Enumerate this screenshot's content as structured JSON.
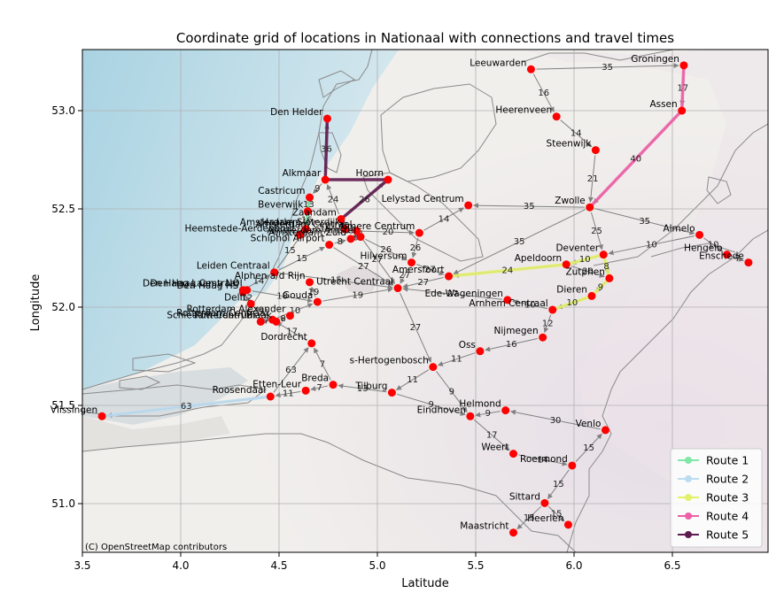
{
  "chart_data": {
    "type": "scatter",
    "title": "Coordinate grid of locations in Nationaal with connections and travel times",
    "xlabel": "Latitude",
    "ylabel": "Longitude",
    "xlim": [
      3.5,
      7.0
    ],
    "ylim": [
      50.75,
      53.3
    ],
    "xticks": [
      "3.5",
      "4.0",
      "4.5",
      "5.0",
      "5.5",
      "6.0",
      "6.5"
    ],
    "yticks": [
      "51.0",
      "51.5",
      "52.0",
      "52.5",
      "53.0"
    ],
    "grid": true,
    "attribution": "(C) OpenStreetMap contributors",
    "legend_position": "bottom-right",
    "colors": {
      "node": "#ff0000",
      "edge": "#808080",
      "route1": "#7fe8a8",
      "route2": "#bcdcf0",
      "route3": "#e2f06a",
      "route4": "#ef5fa7",
      "route5": "#5e1a4f"
    },
    "routes": [
      {
        "name": "Route 1",
        "color": "#7fe8a8"
      },
      {
        "name": "Route 2",
        "color": "#bcdcf0"
      },
      {
        "name": "Route 3",
        "color": "#e2f06a"
      },
      {
        "name": "Route 4",
        "color": "#ef5fa7"
      },
      {
        "name": "Route 5",
        "color": "#5e1a4f"
      }
    ],
    "nodes": [
      {
        "name": "Leeuwarden",
        "x": 5.79,
        "y": 53.2
      },
      {
        "name": "Groningen",
        "x": 6.57,
        "y": 53.22
      },
      {
        "name": "Den Helder",
        "x": 4.75,
        "y": 52.95
      },
      {
        "name": "Heerenveen",
        "x": 5.92,
        "y": 52.96
      },
      {
        "name": "Assen",
        "x": 6.56,
        "y": 52.99
      },
      {
        "name": "Steenwijk",
        "x": 6.12,
        "y": 52.79
      },
      {
        "name": "Alkmaar",
        "x": 4.74,
        "y": 52.64
      },
      {
        "name": "Hoorn",
        "x": 5.06,
        "y": 52.64
      },
      {
        "name": "Castricum",
        "x": 4.66,
        "y": 52.55
      },
      {
        "name": "Beverwijk",
        "x": 4.65,
        "y": 52.48
      },
      {
        "name": "Zaandam",
        "x": 4.82,
        "y": 52.44
      },
      {
        "name": "Amsterdam Centraal",
        "x": 4.9,
        "y": 52.38
      },
      {
        "name": "Amsterdam Sloterdijk",
        "x": 4.84,
        "y": 52.39
      },
      {
        "name": "Haarlem",
        "x": 4.64,
        "y": 52.39
      },
      {
        "name": "Amsterdam Amstel",
        "x": 4.92,
        "y": 52.35
      },
      {
        "name": "Amsterdam Zuid",
        "x": 4.87,
        "y": 52.34
      },
      {
        "name": "Heemstede-Aerdenhout",
        "x": 4.61,
        "y": 52.36
      },
      {
        "name": "Almere Centrum",
        "x": 5.22,
        "y": 52.37
      },
      {
        "name": "Lelystad Centrum",
        "x": 5.47,
        "y": 52.51
      },
      {
        "name": "Zwolle",
        "x": 6.09,
        "y": 52.5
      },
      {
        "name": "Almelo",
        "x": 6.65,
        "y": 52.36
      },
      {
        "name": "Hengelo",
        "x": 6.79,
        "y": 52.26
      },
      {
        "name": "Enschede",
        "x": 6.9,
        "y": 52.22
      },
      {
        "name": "Schiphol Airport",
        "x": 4.76,
        "y": 52.31
      },
      {
        "name": "Leiden Centraal",
        "x": 4.48,
        "y": 52.17
      },
      {
        "name": "Hilversum",
        "x": 5.18,
        "y": 52.22
      },
      {
        "name": "Amersfoort",
        "x": 5.37,
        "y": 52.15
      },
      {
        "name": "Apeldoorn",
        "x": 5.97,
        "y": 52.21
      },
      {
        "name": "Deventer",
        "x": 6.16,
        "y": 52.26
      },
      {
        "name": "Zutphen",
        "x": 6.19,
        "y": 52.14
      },
      {
        "name": "Den Haag Centraal",
        "x": 4.32,
        "y": 52.08
      },
      {
        "name": "Den Haag Laan v NOI",
        "x": 4.34,
        "y": 52.08
      },
      {
        "name": "Den Haag HS",
        "x": 4.32,
        "y": 52.07
      },
      {
        "name": "Delft",
        "x": 4.36,
        "y": 52.01
      },
      {
        "name": "Alphen a/d Rijn",
        "x": 4.66,
        "y": 52.12
      },
      {
        "name": "Gouda",
        "x": 4.7,
        "y": 52.02
      },
      {
        "name": "Utrecht Centraal",
        "x": 5.11,
        "y": 52.09
      },
      {
        "name": "Ede-Wageningen",
        "x": 5.67,
        "y": 52.03
      },
      {
        "name": "Dieren",
        "x": 6.1,
        "y": 52.05
      },
      {
        "name": "Arnhem Centraal",
        "x": 5.9,
        "y": 51.98
      },
      {
        "name": "Rotterdam Centraal",
        "x": 4.47,
        "y": 51.93
      },
      {
        "name": "Rotterdam Blaak",
        "x": 4.49,
        "y": 51.92
      },
      {
        "name": "Rotterdam Alexander",
        "x": 4.56,
        "y": 51.95
      },
      {
        "name": "Schiedam Centrum",
        "x": 4.41,
        "y": 51.92
      },
      {
        "name": "Dordrecht",
        "x": 4.67,
        "y": 51.81
      },
      {
        "name": "Nijmegen",
        "x": 5.85,
        "y": 51.84
      },
      {
        "name": "Oss",
        "x": 5.53,
        "y": 51.77
      },
      {
        "name": "s-Hertogenbosch",
        "x": 5.29,
        "y": 51.69
      },
      {
        "name": "Breda",
        "x": 4.78,
        "y": 51.6
      },
      {
        "name": "Roosendaal",
        "x": 4.46,
        "y": 51.54
      },
      {
        "name": "Etten-Leur",
        "x": 4.64,
        "y": 51.57
      },
      {
        "name": "Tilburg",
        "x": 5.08,
        "y": 51.56
      },
      {
        "name": "Vlissingen",
        "x": 3.6,
        "y": 51.44
      },
      {
        "name": "Eindhoven",
        "x": 5.48,
        "y": 51.44
      },
      {
        "name": "Helmond",
        "x": 5.66,
        "y": 51.47
      },
      {
        "name": "Venlo",
        "x": 6.17,
        "y": 51.37
      },
      {
        "name": "Weert",
        "x": 5.7,
        "y": 51.25
      },
      {
        "name": "Roermond",
        "x": 6.0,
        "y": 51.19
      },
      {
        "name": "Sittard",
        "x": 5.86,
        "y": 51.0
      },
      {
        "name": "Heerlen",
        "x": 5.98,
        "y": 50.89
      },
      {
        "name": "Maastricht",
        "x": 5.7,
        "y": 50.85
      }
    ],
    "edges": [
      {
        "from": "Leeuwarden",
        "to": "Groningen",
        "time": 35
      },
      {
        "from": "Leeuwarden",
        "to": "Heerenveen",
        "time": 16
      },
      {
        "from": "Heerenveen",
        "to": "Steenwijk",
        "time": 14
      },
      {
        "from": "Steenwijk",
        "to": "Zwolle",
        "time": 21
      },
      {
        "from": "Groningen",
        "to": "Assen",
        "time": 17
      },
      {
        "from": "Assen",
        "to": "Zwolle",
        "time": 40
      },
      {
        "from": "Zwolle",
        "to": "Lelystad Centrum",
        "time": 35
      },
      {
        "from": "Zwolle",
        "to": "Almelo",
        "time": 35
      },
      {
        "from": "Zwolle",
        "to": "Deventer",
        "time": 25
      },
      {
        "from": "Zwolle",
        "to": "Amersfoort",
        "time": 35
      },
      {
        "from": "Almelo",
        "to": "Hengelo",
        "time": 10
      },
      {
        "from": "Hengelo",
        "to": "Enschede",
        "time": 7
      },
      {
        "from": "Almelo",
        "to": "Deventer",
        "time": 10
      },
      {
        "from": "Deventer",
        "to": "Apeldoorn",
        "time": 10
      },
      {
        "from": "Deventer",
        "to": "Zutphen",
        "time": 8
      },
      {
        "from": "Apeldoorn",
        "to": "Amersfoort",
        "time": 24
      },
      {
        "from": "Apeldoorn",
        "to": "Zutphen",
        "time": 20
      },
      {
        "from": "Zutphen",
        "to": "Dieren",
        "time": 9
      },
      {
        "from": "Dieren",
        "to": "Arnhem Centraal",
        "time": 10
      },
      {
        "from": "Arnhem Centraal",
        "to": "Ede-Wageningen",
        "time": 10
      },
      {
        "from": "Ede-Wageningen",
        "to": "Utrecht Centraal",
        "time": 27
      },
      {
        "from": "Arnhem Centraal",
        "to": "Nijmegen",
        "time": 12
      },
      {
        "from": "Nijmegen",
        "to": "Oss",
        "time": 16
      },
      {
        "from": "Oss",
        "to": "s-Hertogenbosch",
        "time": 11
      },
      {
        "from": "Utrecht Centraal",
        "to": "s-Hertogenbosch",
        "time": 27
      },
      {
        "from": "s-Hertogenbosch",
        "to": "Tilburg",
        "time": 11
      },
      {
        "from": "s-Hertogenbosch",
        "to": "Eindhoven",
        "time": 9
      },
      {
        "from": "Tilburg",
        "to": "Breda",
        "time": 13
      },
      {
        "from": "Tilburg",
        "to": "Eindhoven",
        "time": 9
      },
      {
        "from": "Breda",
        "to": "Etten-Leur",
        "time": 7
      },
      {
        "from": "Etten-Leur",
        "to": "Roosendaal",
        "time": 11
      },
      {
        "from": "Roosendaal",
        "to": "Vlissingen",
        "time": 63
      },
      {
        "from": "Breda",
        "to": "Dordrecht",
        "time": 7
      },
      {
        "from": "Roosendaal",
        "to": "Dordrecht",
        "time": 63
      },
      {
        "from": "Dordrecht",
        "to": "Rotterdam Centraal",
        "time": 17
      },
      {
        "from": "Rotterdam Centraal",
        "to": "Rotterdam Blaak",
        "time": 8
      },
      {
        "from": "Rotterdam Blaak",
        "to": "Rotterdam Alexander",
        "time": 8
      },
      {
        "from": "Schiedam Centrum",
        "to": "Rotterdam Centraal",
        "time": 7
      },
      {
        "from": "Rotterdam Centraal",
        "to": "Delft",
        "time": 7
      },
      {
        "from": "Delft",
        "to": "Den Haag HS",
        "time": 12
      },
      {
        "from": "Rotterdam Centraal",
        "to": "Gouda",
        "time": 10
      },
      {
        "from": "Gouda",
        "to": "Utrecht Centraal",
        "time": 19
      },
      {
        "from": "Gouda",
        "to": "Alphen a/d Rijn",
        "time": 19
      },
      {
        "from": "Den Haag Centraal",
        "to": "Leiden Centraal",
        "time": 14
      },
      {
        "from": "Den Haag Laan v NOI",
        "to": "Gouda",
        "time": 18
      },
      {
        "from": "Leiden Centraal",
        "to": "Schiphol Airport",
        "time": 15
      },
      {
        "from": "Leiden Centraal",
        "to": "Haarlem",
        "time": 15
      },
      {
        "from": "Leiden Centraal",
        "to": "Utrecht Centraal",
        "time": 15
      },
      {
        "from": "Schiphol Airport",
        "to": "Amsterdam Zuid",
        "time": 8
      },
      {
        "from": "Schiphol Airport",
        "to": "Utrecht Centraal",
        "time": 27
      },
      {
        "from": "Amsterdam Zuid",
        "to": "Amsterdam Amstel",
        "time": 6
      },
      {
        "from": "Amsterdam Centraal",
        "to": "Amsterdam Sloterdijk",
        "time": 11
      },
      {
        "from": "Amsterdam Centraal",
        "to": "Amsterdam Amstel",
        "time": 11
      },
      {
        "from": "Amsterdam Centraal",
        "to": "Almere Centrum",
        "time": 20
      },
      {
        "from": "Amsterdam Centraal",
        "to": "Utrecht Centraal",
        "time": 27
      },
      {
        "from": "Amsterdam Amstel",
        "to": "Hilversum",
        "time": 26
      },
      {
        "from": "Hilversum",
        "to": "Utrecht Centraal",
        "time": 27
      },
      {
        "from": "Hilversum",
        "to": "Amersfoort",
        "time": 27
      },
      {
        "from": "Almere Centrum",
        "to": "Lelystad Centrum",
        "time": 14
      },
      {
        "from": "Almere Centrum",
        "to": "Hilversum",
        "time": 26
      },
      {
        "from": "Amsterdam Sloterdijk",
        "to": "Zaandam",
        "time": 8
      },
      {
        "from": "Zaandam",
        "to": "Hoorn",
        "time": 26
      },
      {
        "from": "Zaandam",
        "to": "Alkmaar",
        "time": 24
      },
      {
        "from": "Alkmaar",
        "to": "Castricum",
        "time": 9
      },
      {
        "from": "Alkmaar",
        "to": "Den Helder",
        "time": 36
      },
      {
        "from": "Castricum",
        "to": "Beverwijk",
        "time": 13
      },
      {
        "from": "Beverwijk",
        "to": "Haarlem",
        "time": 16
      },
      {
        "from": "Haarlem",
        "to": "Heemstede-Aerdenhout",
        "time": 6
      },
      {
        "from": "Haarlem",
        "to": "Amsterdam Sloterdijk",
        "time": 16
      },
      {
        "from": "Amersfoort",
        "to": "Utrecht Centraal",
        "time": 27
      },
      {
        "from": "Venlo",
        "to": "Helmond",
        "time": 30
      },
      {
        "from": "Helmond",
        "to": "Eindhoven",
        "time": 9
      },
      {
        "from": "Eindhoven",
        "to": "Weert",
        "time": 17
      },
      {
        "from": "Weert",
        "to": "Roermond",
        "time": 14
      },
      {
        "from": "Roermond",
        "to": "Venlo",
        "time": 15
      },
      {
        "from": "Roermond",
        "to": "Sittard",
        "time": 15
      },
      {
        "from": "Sittard",
        "to": "Heerlen",
        "time": 15
      },
      {
        "from": "Sittard",
        "to": "Maastricht",
        "time": 15
      }
    ],
    "route_paths": [
      {
        "route": "Route 1",
        "stops": [
          "Castricum",
          "Beverwijk",
          "Haarlem",
          "Heemstede-Aerdenhout"
        ]
      },
      {
        "route": "Route 2",
        "stops": [
          "Vlissingen",
          "Roosendaal"
        ]
      },
      {
        "route": "Route 3",
        "stops": [
          "Amersfoort",
          "Apeldoorn",
          "Deventer",
          "Zutphen",
          "Dieren",
          "Arnhem Centraal"
        ]
      },
      {
        "route": "Route 4",
        "stops": [
          "Groningen",
          "Assen",
          "Zwolle"
        ]
      },
      {
        "route": "Route 5",
        "stops": [
          "Den Helder",
          "Alkmaar",
          "Hoorn",
          "Zaandam",
          "Amsterdam Sloterdijk"
        ]
      }
    ]
  }
}
